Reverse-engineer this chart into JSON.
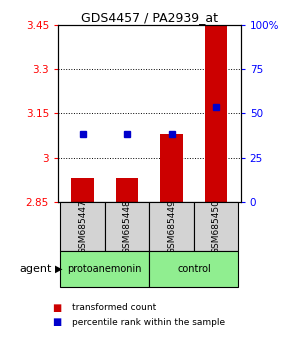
{
  "title": "GDS4457 / PA2939_at",
  "samples": [
    "GSM685447",
    "GSM685448",
    "GSM685449",
    "GSM685450"
  ],
  "bar_values": [
    2.93,
    2.93,
    3.08,
    3.45
  ],
  "percentile_values": [
    3.08,
    3.08,
    3.08,
    3.17
  ],
  "bar_color": "#cc0000",
  "percentile_color": "#0000cc",
  "ylim": [
    2.85,
    3.45
  ],
  "yticks_left": [
    2.85,
    3.0,
    3.15,
    3.3,
    3.45
  ],
  "yticks_right": [
    0,
    25,
    50,
    75,
    100
  ],
  "ytick_labels_left": [
    "2.85",
    "3",
    "3.15",
    "3.3",
    "3.45"
  ],
  "ytick_labels_right": [
    "0",
    "25",
    "50",
    "75",
    "100%"
  ],
  "grid_yticks": [
    3.0,
    3.15,
    3.3
  ],
  "bar_width": 0.5,
  "sample_box_color": "#d3d3d3",
  "group_defs": [
    {
      "label": "protoanemonin",
      "color": "#90ee90",
      "cols": [
        0,
        1
      ]
    },
    {
      "label": "control",
      "color": "#90ee90",
      "cols": [
        2,
        3
      ]
    }
  ],
  "legend_items": [
    {
      "color": "#cc0000",
      "label": "transformed count"
    },
    {
      "color": "#0000cc",
      "label": "percentile rank within the sample"
    }
  ],
  "agent_label": "agent"
}
